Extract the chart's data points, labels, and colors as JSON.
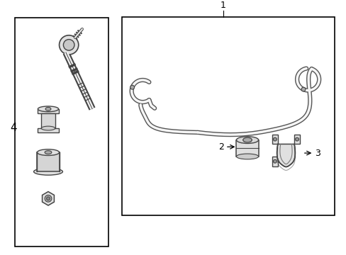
{
  "background_color": "#ffffff",
  "border_color": "#000000",
  "line_color": "#444444",
  "fig_width": 4.89,
  "fig_height": 3.6,
  "dpi": 100,
  "label_4": "4",
  "label_1": "1",
  "label_2": "2",
  "label_3": "3"
}
